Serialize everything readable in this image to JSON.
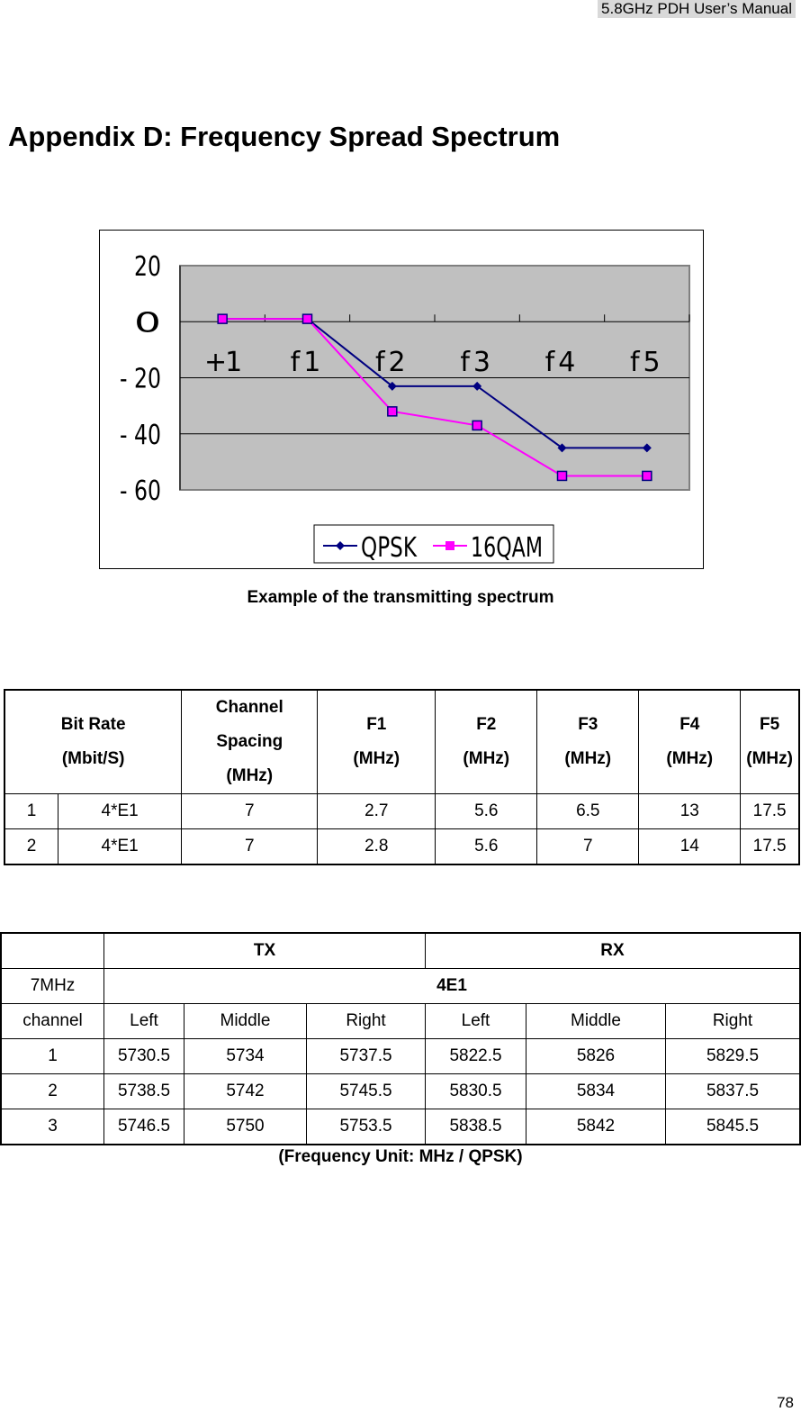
{
  "header": "5.8GHz PDH User’s Manual",
  "title": "Appendix D: Frequency Spread Spectrum",
  "chart_data": {
    "type": "line",
    "categories": [
      "+1",
      "f1",
      "f2",
      "f3",
      "f4",
      "f5"
    ],
    "yticks": [
      "20",
      "0",
      "-20",
      "-40",
      "-60"
    ],
    "ylim": [
      -60,
      20
    ],
    "grid": true,
    "legend": "bottom",
    "series": [
      {
        "name": "QPSK",
        "color": "#000080",
        "marker": "diamond",
        "values": [
          1,
          1,
          -23,
          -23,
          -45,
          -45
        ]
      },
      {
        "name": "16QAM",
        "color": "#ff00ff",
        "marker": "square",
        "values": [
          1,
          1,
          -32,
          -37,
          -55,
          -55
        ]
      }
    ]
  },
  "chart_caption": "Example of the transmitting spectrum",
  "table1": {
    "headers": [
      "Bit Rate\n(Mbit/S)",
      "Channel\nSpacing\n(MHz)",
      "F1\n(MHz)",
      "F2\n(MHz)",
      "F3\n(MHz)",
      "F4\n(MHz)",
      "F5\n(MHz)"
    ],
    "rows": [
      [
        "1",
        "4*E1",
        "7",
        "2.7",
        "5.6",
        "6.5",
        "13",
        "17.5"
      ],
      [
        "2",
        "4*E1",
        "7",
        "2.8",
        "5.6",
        "7",
        "14",
        "17.5"
      ]
    ]
  },
  "table2": {
    "tx": "TX",
    "rx": "RX",
    "bw": "7MHz",
    "mode": "4E1",
    "sub": [
      "channel",
      "Left",
      "Middle",
      "Right",
      "Left",
      "Middle",
      "Right"
    ],
    "rows": [
      [
        "1",
        "5730.5",
        "5734",
        "5737.5",
        "5822.5",
        "5826",
        "5829.5"
      ],
      [
        "2",
        "5738.5",
        "5742",
        "5745.5",
        "5830.5",
        "5834",
        "5837.5"
      ],
      [
        "3",
        "5746.5",
        "5750",
        "5753.5",
        "5838.5",
        "5842",
        "5845.5"
      ]
    ]
  },
  "table2_caption": "(Frequency Unit: MHz / QPSK)",
  "page_number": "78"
}
